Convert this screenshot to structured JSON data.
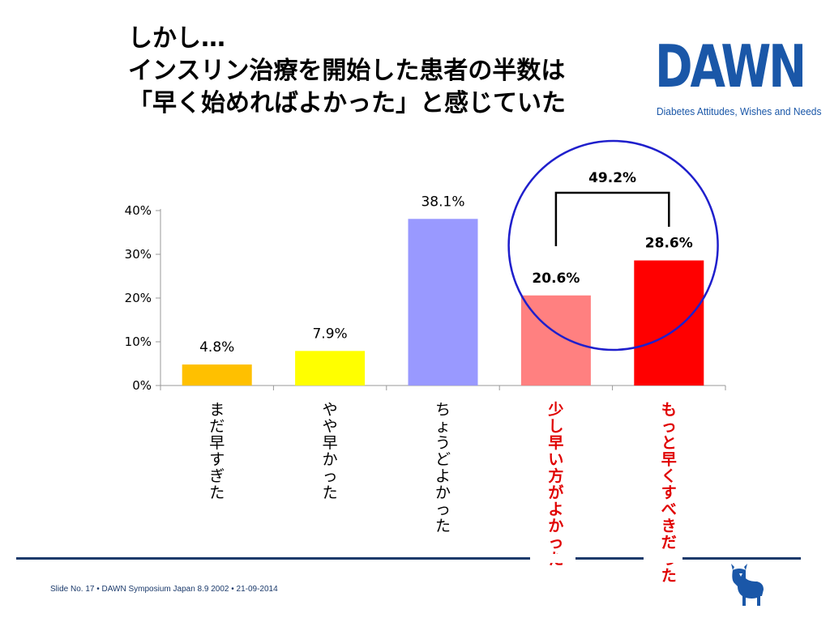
{
  "title": {
    "line1": "しかし…",
    "line2": "インスリン治療を開始した患者の半数は",
    "line3": "「早く始めればよかった」と感じていた"
  },
  "logo": {
    "word": "DAWN",
    "tagline": "Diabetes Attitudes, Wishes and Needs"
  },
  "footer": {
    "text": "Slide No. 17 • DAWN Symposium Japan 8.9 2002 • 21-09-2014"
  },
  "colors": {
    "brand_blue": "#1a57a8",
    "footer_navy": "#1b3a6b",
    "circle_blue": "#1f1fcc",
    "highlight_red": "#e00000"
  },
  "chart_data": {
    "type": "bar",
    "categories": [
      "まだ早すぎた",
      "やや早かった",
      "ちょうどよかった",
      "少し早い方がよかった",
      "もっと早くすべきだった"
    ],
    "values": [
      4.8,
      7.9,
      38.1,
      20.6,
      28.6
    ],
    "value_labels": [
      "4.8%",
      "7.9%",
      "38.1%",
      "20.6%",
      "28.6%"
    ],
    "bar_colors": [
      "#ffc000",
      "#ffff00",
      "#9999ff",
      "#ff8080",
      "#ff0000"
    ],
    "category_colors": [
      "#000000",
      "#000000",
      "#000000",
      "#e00000",
      "#e00000"
    ],
    "bold_labels": [
      false,
      false,
      false,
      true,
      true
    ],
    "ylim": [
      0,
      40
    ],
    "yticks": [
      "0%",
      "10%",
      "20%",
      "30%",
      "40%"
    ],
    "ytick_values": [
      0,
      10,
      20,
      30,
      40
    ],
    "grid": false,
    "annotation": {
      "label": "49.2%",
      "bracket_categories": [
        3,
        4
      ],
      "circle_categories": [
        3,
        4
      ]
    }
  }
}
